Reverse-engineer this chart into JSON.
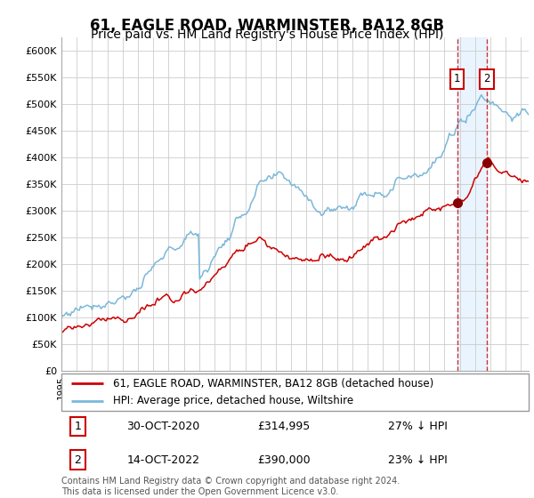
{
  "title": "61, EAGLE ROAD, WARMINSTER, BA12 8GB",
  "subtitle": "Price paid vs. HM Land Registry's House Price Index (HPI)",
  "ylabel_ticks": [
    "£0",
    "£50K",
    "£100K",
    "£150K",
    "£200K",
    "£250K",
    "£300K",
    "£350K",
    "£400K",
    "£450K",
    "£500K",
    "£550K",
    "£600K"
  ],
  "ytick_values": [
    0,
    50000,
    100000,
    150000,
    200000,
    250000,
    300000,
    350000,
    400000,
    450000,
    500000,
    550000,
    600000
  ],
  "ylim": [
    0,
    625000
  ],
  "xlim_start": 1995.0,
  "xlim_end": 2025.5,
  "hpi_color": "#7ab8d9",
  "price_color": "#cc0000",
  "background_color": "#ffffff",
  "grid_color": "#cccccc",
  "highlight_bg": "#ddeeff",
  "sale1_date_x": 2020.83,
  "sale1_price": 314995,
  "sale2_date_x": 2022.79,
  "sale2_price": 390000,
  "legend_line1": "61, EAGLE ROAD, WARMINSTER, BA12 8GB (detached house)",
  "legend_line2": "HPI: Average price, detached house, Wiltshire",
  "table_row1": [
    "1",
    "30-OCT-2020",
    "£314,995",
    "27% ↓ HPI"
  ],
  "table_row2": [
    "2",
    "14-OCT-2022",
    "£390,000",
    "23% ↓ HPI"
  ],
  "footnote": "Contains HM Land Registry data © Crown copyright and database right 2024.\nThis data is licensed under the Open Government Licence v3.0.",
  "title_fontsize": 12,
  "subtitle_fontsize": 10
}
